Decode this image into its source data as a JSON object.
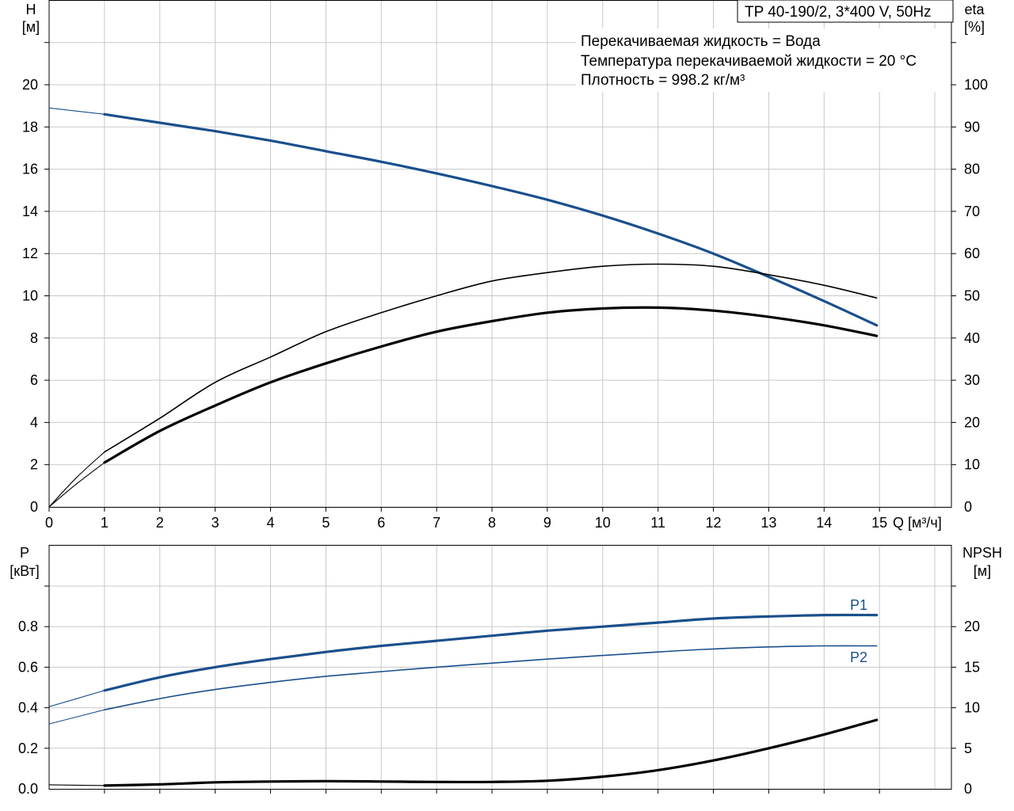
{
  "header": {
    "model": "TP 40-190/2, 3*400 V, 50Hz",
    "info_lines": [
      "Перекачиваемая жидкость = Вода",
      "Температура перекачиваемой жидкости = 20 °C",
      "Плотность = 998.2 кг/м³"
    ]
  },
  "colors": {
    "blue": "#1a4f8c",
    "black": "#000000",
    "grid": "#c8c8c8",
    "frame": "#000000"
  },
  "chart_data": [
    {
      "type": "line",
      "axes": {
        "x": {
          "label": "Q [м³/ч]",
          "range": [
            0,
            16
          ],
          "ticks": [
            0,
            1,
            2,
            3,
            4,
            5,
            6,
            7,
            8,
            9,
            10,
            11,
            12,
            13,
            14,
            15
          ]
        },
        "y_left": {
          "label_top": "H",
          "label_unit": "[м]",
          "range": [
            0,
            24
          ],
          "ticks": [
            0,
            2,
            4,
            6,
            8,
            10,
            12,
            14,
            16,
            18,
            20
          ]
        },
        "y_right": {
          "label_top": "eta",
          "label_unit": "[%]",
          "range": [
            0,
            120
          ],
          "ticks": [
            0,
            10,
            20,
            30,
            40,
            50,
            60,
            70,
            80,
            90,
            100
          ]
        }
      },
      "grid": true,
      "series": [
        {
          "axis": "y_left",
          "color": "blue",
          "style": "thick",
          "x": [
            1,
            2,
            3,
            4,
            5,
            6,
            7,
            8,
            9,
            10,
            11,
            12,
            13,
            14,
            14.95
          ],
          "values": [
            18.6,
            18.2,
            17.8,
            17.35,
            16.85,
            16.35,
            15.8,
            15.2,
            14.55,
            13.8,
            12.95,
            12.0,
            10.9,
            9.75,
            8.6
          ],
          "extension_x": [
            0,
            1
          ],
          "extension_values": [
            18.9,
            18.6
          ]
        },
        {
          "axis": "y_right",
          "color": "black",
          "style": "thin",
          "x": [
            1,
            2,
            3,
            4,
            5,
            6,
            7,
            8,
            9,
            10,
            11,
            12,
            13,
            14,
            14.95
          ],
          "values": [
            13,
            21,
            29.5,
            35.5,
            41.5,
            46,
            50,
            53.5,
            55.5,
            57,
            57.5,
            57,
            55,
            52.5,
            49.5
          ],
          "extension_x": [
            0,
            0.5,
            1
          ],
          "extension_values": [
            0,
            7,
            13
          ]
        },
        {
          "axis": "y_right",
          "color": "black",
          "style": "thick",
          "x": [
            1,
            2,
            3,
            4,
            5,
            6,
            7,
            8,
            9,
            10,
            11,
            12,
            13,
            14,
            14.95
          ],
          "values": [
            10.5,
            18,
            24,
            29.5,
            34,
            38,
            41.5,
            44,
            46,
            47,
            47.2,
            46.5,
            45,
            43,
            40.5
          ],
          "extension_x": [
            0,
            0.5,
            1
          ],
          "extension_values": [
            0,
            5.5,
            10.5
          ]
        }
      ]
    },
    {
      "type": "line",
      "axes": {
        "x": {
          "range": [
            0,
            16
          ]
        },
        "y_left": {
          "label_top": "P",
          "label_unit": "[кВт]",
          "range": [
            0,
            1.0
          ],
          "ticks": [
            0.0,
            0.2,
            0.4,
            0.6,
            0.8
          ],
          "tick_labels": [
            "0.0",
            "0.2",
            "0.4",
            "0.6",
            "0.8"
          ]
        },
        "y_right": {
          "label_top": "NPSH",
          "label_unit": "[м]",
          "range": [
            0,
            25
          ],
          "ticks": [
            0,
            5,
            10,
            15,
            20
          ]
        }
      },
      "grid": true,
      "series": [
        {
          "name": "P1",
          "axis": "y_left",
          "color": "blue",
          "style": "thick",
          "x": [
            1,
            2,
            3,
            4,
            5,
            6,
            7,
            8,
            9,
            10,
            11,
            12,
            13,
            14,
            14.95
          ],
          "values": [
            0.485,
            0.55,
            0.6,
            0.64,
            0.675,
            0.705,
            0.73,
            0.755,
            0.78,
            0.8,
            0.82,
            0.84,
            0.85,
            0.857,
            0.857
          ],
          "extension_x": [
            0,
            1
          ],
          "extension_values": [
            0.405,
            0.485
          ]
        },
        {
          "name": "P2",
          "axis": "y_left",
          "color": "blue",
          "style": "thin",
          "x": [
            1,
            2,
            3,
            4,
            5,
            6,
            7,
            8,
            9,
            10,
            11,
            12,
            13,
            14,
            14.95
          ],
          "values": [
            0.39,
            0.445,
            0.49,
            0.525,
            0.555,
            0.578,
            0.6,
            0.62,
            0.64,
            0.658,
            0.675,
            0.69,
            0.7,
            0.705,
            0.705
          ],
          "extension_x": [
            0,
            1
          ],
          "extension_values": [
            0.32,
            0.39
          ]
        },
        {
          "axis": "y_right",
          "color": "black",
          "style": "thick",
          "x": [
            1,
            2,
            3,
            4,
            5,
            6,
            7,
            8,
            9,
            10,
            11,
            12,
            13,
            14,
            14.95
          ],
          "values": [
            0.4,
            0.55,
            0.8,
            0.9,
            0.95,
            0.9,
            0.85,
            0.85,
            1.0,
            1.5,
            2.3,
            3.5,
            5.0,
            6.7,
            8.5
          ],
          "extension_x": [
            0,
            1
          ],
          "extension_values": [
            0.5,
            0.4
          ]
        }
      ]
    }
  ]
}
